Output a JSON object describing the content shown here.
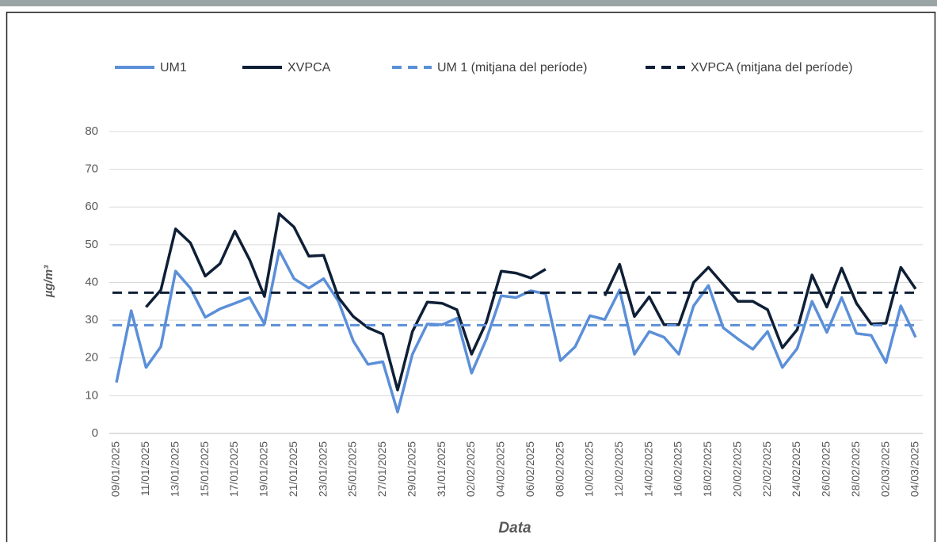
{
  "chart_data": {
    "type": "line",
    "y_label": "µg/m³",
    "x_label": "Data",
    "categories": [
      "09/01/2025",
      null,
      "11/01/2025",
      null,
      "13/01/2025",
      null,
      "15/01/2025",
      null,
      "17/01/2025",
      null,
      "19/01/2025",
      null,
      "21/01/2025",
      null,
      "23/01/2025",
      null,
      "25/01/2025",
      null,
      "27/01/2025",
      null,
      "29/01/2025",
      null,
      "31/01/2025",
      null,
      "02/02/2025",
      null,
      "04/02/2025",
      null,
      "06/02/2025",
      null,
      "08/02/2025",
      null,
      "10/02/2025",
      null,
      "12/02/2025",
      null,
      "14/02/2025",
      null,
      "16/02/2025",
      null,
      "18/02/2025",
      null,
      "20/02/2025",
      null,
      "22/02/2025",
      null,
      "24/02/2025",
      null,
      "26/02/2025",
      null,
      "28/02/2025",
      null,
      "02/03/2025",
      null,
      "04/03/2025"
    ],
    "series": [
      {
        "name": "UM1",
        "color": "#5b8fd8",
        "values": [
          13.5,
          32.5,
          17.5,
          23,
          43,
          38.5,
          30.8,
          33,
          34.5,
          36,
          29,
          48.5,
          41,
          38.5,
          41,
          35,
          24.5,
          18.3,
          19,
          5.7,
          21,
          29,
          28.8,
          30.5,
          16,
          25,
          36.5,
          36,
          37.8,
          37,
          19.3,
          23,
          31.2,
          30.2,
          38,
          21,
          27,
          25.5,
          21,
          33.8,
          39.2,
          28,
          25,
          22.3,
          27,
          17.5,
          22.5,
          35,
          26.8,
          36,
          26.5,
          26,
          18.8,
          33.8,
          25.5
        ]
      },
      {
        "name": "XVPCA",
        "color": "#0e1f36",
        "values": [
          null,
          null,
          33.5,
          38,
          54.2,
          50.5,
          41.7,
          45,
          53.6,
          46,
          36.3,
          58.2,
          54.7,
          47,
          47.2,
          36,
          31,
          28,
          26.3,
          11.5,
          27,
          34.8,
          34.5,
          32.8,
          21,
          29.5,
          43,
          42.5,
          41.2,
          43.5,
          null,
          null,
          null,
          36.5,
          44.8,
          31,
          36.2,
          28.8,
          28.8,
          40,
          44,
          39.5,
          35,
          35,
          32.8,
          22.7,
          27.5,
          42,
          33.5,
          43.8,
          34.5,
          29,
          29.2,
          44,
          38.3
        ]
      },
      {
        "name": "UM 1 (mitjana del període)",
        "color": "#5b8fd8",
        "dashed": true,
        "value": 28.7
      },
      {
        "name": "XVPCA (mitjana del període)",
        "color": "#0e1f36",
        "dashed": true,
        "value": 37.3
      }
    ],
    "ylim": [
      0,
      80
    ],
    "yticks": [
      0,
      10,
      20,
      30,
      40,
      50,
      60,
      70,
      80
    ],
    "grid": true
  }
}
